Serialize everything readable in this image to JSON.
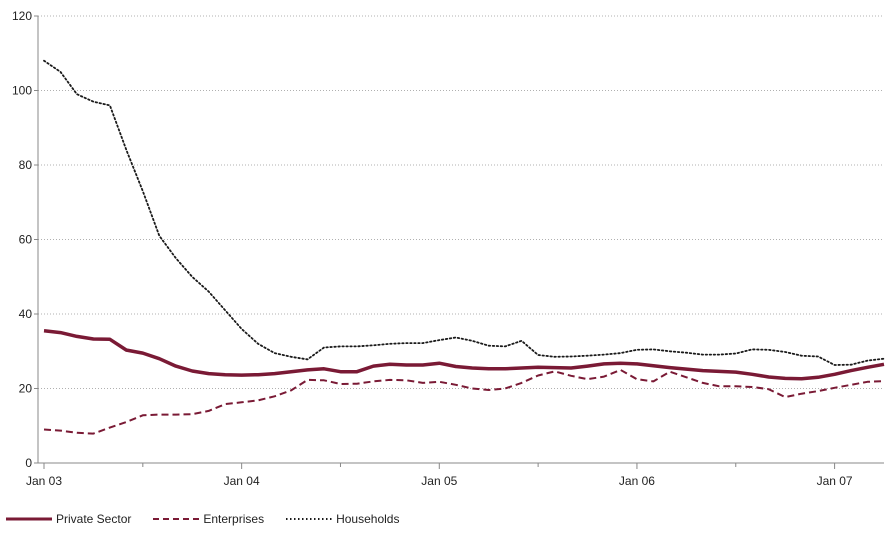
{
  "chart_data": {
    "type": "line",
    "title": "",
    "xlabel": "",
    "ylabel": "",
    "x_tick_labels": [
      "Jan 03",
      "Jan 04",
      "Jan 05",
      "Jan 06",
      "Jan 07"
    ],
    "x_tick_positions": [
      0,
      12,
      24,
      36,
      48
    ],
    "xlim": [
      0,
      51
    ],
    "ylim": [
      0,
      120
    ],
    "y_ticks": [
      0,
      20,
      40,
      60,
      80,
      100,
      120
    ],
    "grid": "horizontal dotted",
    "legend_position": "bottom-left",
    "series": [
      {
        "name": "Private Sector",
        "style": "solid",
        "color": "#7a1a35",
        "x": [
          0,
          1,
          2,
          3,
          4,
          5,
          6,
          7,
          8,
          9,
          10,
          11,
          12,
          13,
          14,
          15,
          16,
          17,
          18,
          19,
          20,
          21,
          22,
          23,
          24,
          25,
          26,
          27,
          28,
          29,
          30,
          31,
          32,
          33,
          34,
          35,
          36,
          37,
          38,
          39,
          40,
          41,
          42,
          43,
          44,
          45,
          46,
          47,
          48,
          49,
          50,
          51
        ],
        "values": [
          35.5,
          35,
          34,
          33.3,
          33.2,
          30.3,
          29.5,
          28,
          26,
          24.7,
          24,
          23.7,
          23.6,
          23.7,
          24,
          24.5,
          25,
          25.3,
          24.5,
          24.5,
          26,
          26.5,
          26.3,
          26.3,
          26.8,
          25.9,
          25.5,
          25.3,
          25.3,
          25.5,
          25.7,
          25.6,
          25.5,
          26,
          26.6,
          26.8,
          26.6,
          26.1,
          25.6,
          25.2,
          24.8,
          24.6,
          24.4,
          23.8,
          23.1,
          22.7,
          22.6,
          23,
          23.8,
          24.8,
          25.7,
          26.5
        ]
      },
      {
        "name": "Enterprises",
        "style": "dashed",
        "color": "#7a1a35",
        "x": [
          0,
          1,
          2,
          3,
          4,
          5,
          6,
          7,
          8,
          9,
          10,
          11,
          12,
          13,
          14,
          15,
          16,
          17,
          18,
          19,
          20,
          21,
          22,
          23,
          24,
          25,
          26,
          27,
          28,
          29,
          30,
          31,
          32,
          33,
          34,
          35,
          36,
          37,
          38,
          39,
          40,
          41,
          42,
          43,
          44,
          45,
          46,
          47,
          48,
          49,
          50,
          51
        ],
        "values": [
          9,
          8.7,
          8.1,
          7.9,
          9.5,
          11,
          12.8,
          13,
          13,
          13.1,
          14,
          15.8,
          16.3,
          16.8,
          17.9,
          19.5,
          22.3,
          22.2,
          21.2,
          21.3,
          21.9,
          22.3,
          22.2,
          21.5,
          21.8,
          21,
          20,
          19.6,
          20,
          21.5,
          23.5,
          24.6,
          23.4,
          22.5,
          23.2,
          25,
          22.5,
          21.9,
          24.5,
          23,
          21.5,
          20.6,
          20.6,
          20.4,
          19.8,
          17.7,
          18.6,
          19.3,
          20.2,
          21,
          21.8,
          22
        ]
      },
      {
        "name": "Households",
        "style": "dotted",
        "color": "#1a1a1a",
        "x": [
          0,
          1,
          2,
          3,
          4,
          5,
          6,
          7,
          8,
          9,
          10,
          11,
          12,
          13,
          14,
          15,
          16,
          17,
          18,
          19,
          20,
          21,
          22,
          23,
          24,
          25,
          26,
          27,
          28,
          29,
          30,
          31,
          32,
          33,
          34,
          35,
          36,
          37,
          38,
          39,
          40,
          41,
          42,
          43,
          44,
          45,
          46,
          47,
          48,
          49,
          50,
          51
        ],
        "values": [
          108,
          105,
          99,
          97,
          96,
          84,
          73,
          61,
          55,
          50,
          46,
          41,
          36,
          32,
          29.5,
          28.5,
          27.8,
          31,
          31.3,
          31.3,
          31.6,
          32,
          32.2,
          32.2,
          33,
          33.7,
          32.8,
          31.5,
          31.3,
          32.8,
          29,
          28.5,
          28.6,
          28.8,
          29.1,
          29.5,
          30.4,
          30.5,
          30,
          29.6,
          29.1,
          29.1,
          29.4,
          30.5,
          30.4,
          29.8,
          28.8,
          28.6,
          26.3,
          26.4,
          27.5,
          28
        ]
      }
    ]
  }
}
